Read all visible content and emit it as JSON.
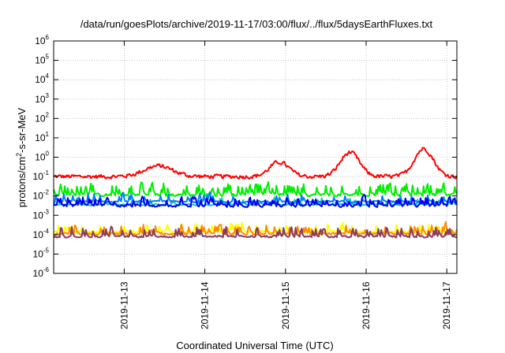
{
  "chart_data": {
    "type": "line",
    "title": "/data/run/goesPlots/archive/2019-11-17/03:00/flux/../flux/5daysEarthFluxes.txt",
    "xlabel": "Coordinated Universal Time (UTC)",
    "ylabel": "protons/cm2-s-sr-MeV",
    "ylabel_parts": {
      "before": "protons/cm",
      "sup": "2",
      "after": "-s-sr-MeV"
    },
    "y_scale": "log",
    "ylim": [
      1e-06,
      1000000.0
    ],
    "y_tick_exponents": [
      -6,
      -5,
      -4,
      -3,
      -2,
      -1,
      0,
      1,
      2,
      3,
      4,
      5,
      6
    ],
    "y_tick_base": "10",
    "xlim": [
      "2019-11-12T03:00",
      "2019-11-17T03:00"
    ],
    "x_ticks": [
      {
        "label": "2019-11-13",
        "date": "2019-11-13T00:00"
      },
      {
        "label": "2019-11-14",
        "date": "2019-11-14T00:00"
      },
      {
        "label": "2019-11-15",
        "date": "2019-11-15T00:00"
      },
      {
        "label": "2019-11-16",
        "date": "2019-11-16T00:00"
      },
      {
        "label": "2019-11-17",
        "date": "2019-11-17T00:00"
      }
    ],
    "grid": true,
    "legend": "none",
    "series": [
      {
        "color": "#ff0000",
        "base_log": -1.0,
        "noise": 0.15,
        "spikes": 0.0,
        "spike_amp": 0.0,
        "bumps": [
          {
            "center": "2019-11-13T10:00",
            "width_h": 6,
            "amp_log": 0.55
          },
          {
            "center": "2019-11-14T22:00",
            "width_h": 4,
            "amp_log": 0.75
          },
          {
            "center": "2019-11-15T19:00",
            "width_h": 4,
            "amp_log": 1.25
          },
          {
            "center": "2019-11-16T17:00",
            "width_h": 4,
            "amp_log": 1.45
          }
        ]
      },
      {
        "color": "#00ee00",
        "base_log": -1.95,
        "noise": 0.1,
        "spikes": 0.22,
        "spike_amp": 0.8,
        "bumps": []
      },
      {
        "color": "#20c0c0",
        "base_log": -2.45,
        "noise": 0.06,
        "spikes": 0.1,
        "spike_amp": 0.45,
        "bumps": []
      },
      {
        "color": "#0080ff",
        "base_log": -2.3,
        "noise": 0.07,
        "spikes": 0.12,
        "spike_amp": 0.6,
        "bumps": []
      },
      {
        "color": "#0000ee",
        "base_log": -2.5,
        "noise": 0.1,
        "spikes": 0.25,
        "spike_amp": 0.55,
        "bumps": []
      },
      {
        "color": "#ffff00",
        "base_log": -3.85,
        "noise": 0.08,
        "spikes": 0.12,
        "spike_amp": 0.6,
        "bumps": []
      },
      {
        "color": "#ff8c00",
        "base_log": -3.95,
        "noise": 0.08,
        "spikes": 0.14,
        "spike_amp": 0.65,
        "bumps": []
      },
      {
        "color": "#8b3a62",
        "base_log": -4.1,
        "noise": 0.07,
        "spikes": 0.16,
        "spike_amp": 0.7,
        "bumps": []
      }
    ]
  }
}
